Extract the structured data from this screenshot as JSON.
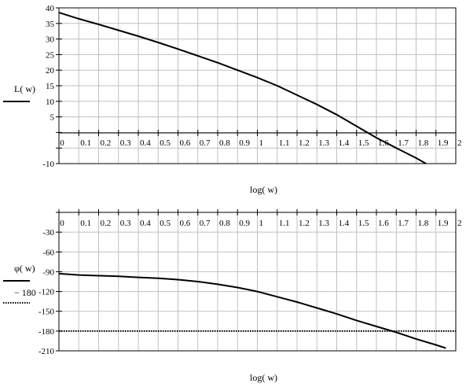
{
  "chart_data": [
    {
      "type": "line",
      "xlabel": "log( w)",
      "ylabel": "",
      "xlim": [
        0,
        2
      ],
      "ylim": [
        -10,
        40
      ],
      "x_ticks": [
        "0",
        "0.1",
        "0.2",
        "0.3",
        "0.4",
        "0.5",
        "0.6",
        "0.7",
        "0.8",
        "0.9",
        "1",
        "1.1",
        "1.2",
        "1.3",
        "1.4",
        "1.5",
        "1.6",
        "1.7",
        "1.8",
        "1.9",
        "2"
      ],
      "y_ticks": [
        {
          "value": 40,
          "label": "40"
        },
        {
          "value": 35,
          "label": "35"
        },
        {
          "value": 30,
          "label": "30"
        },
        {
          "value": 25,
          "label": "25"
        },
        {
          "value": 20,
          "label": "20"
        },
        {
          "value": 15,
          "label": "15"
        },
        {
          "value": 10,
          "label": "10"
        },
        {
          "value": 5,
          "label": "5"
        },
        {
          "value": -10,
          "label": "-10"
        }
      ],
      "grid": true,
      "legend_position": "left",
      "series": [
        {
          "name": "L( w)",
          "style": "solid",
          "color": "#000000",
          "x": [
            0,
            0.1,
            0.2,
            0.3,
            0.4,
            0.5,
            0.6,
            0.7,
            0.8,
            0.9,
            1.0,
            1.1,
            1.2,
            1.3,
            1.4,
            1.5,
            1.6,
            1.7,
            1.8,
            1.85
          ],
          "y": [
            38.5,
            36.5,
            34.7,
            32.8,
            30.9,
            28.9,
            26.8,
            24.6,
            22.4,
            20.0,
            17.6,
            15.0,
            12.0,
            9.0,
            5.7,
            2.0,
            -1.7,
            -5.0,
            -8.2,
            -10.0
          ]
        }
      ]
    },
    {
      "type": "line",
      "xlabel": "log( w)",
      "ylabel": "",
      "xlim": [
        0,
        2
      ],
      "ylim": [
        -210,
        0
      ],
      "x_ticks": [
        "0",
        "0.1",
        "0.2",
        "0.3",
        "0.4",
        "0.5",
        "0.6",
        "0.7",
        "0.8",
        "0.9",
        "1",
        "1.1",
        "1.2",
        "1.3",
        "1.4",
        "1.5",
        "1.6",
        "1.7",
        "1.8",
        "1.9",
        "2"
      ],
      "y_ticks": [
        {
          "value": -30,
          "label": "-30"
        },
        {
          "value": -60,
          "label": "-60"
        },
        {
          "value": -90,
          "label": "-90"
        },
        {
          "value": -120,
          "label": "-120"
        },
        {
          "value": -150,
          "label": "-150"
        },
        {
          "value": -180,
          "label": "-180"
        },
        {
          "value": -210,
          "label": "-210"
        }
      ],
      "grid": true,
      "legend_position": "left",
      "series": [
        {
          "name": "φ( w)",
          "style": "solid",
          "color": "#000000",
          "x": [
            0,
            0.1,
            0.2,
            0.3,
            0.4,
            0.5,
            0.6,
            0.7,
            0.8,
            0.9,
            1.0,
            1.1,
            1.2,
            1.3,
            1.4,
            1.5,
            1.6,
            1.7,
            1.8,
            1.9,
            1.95
          ],
          "y": [
            -93,
            -95,
            -96,
            -97,
            -98.5,
            -100,
            -102,
            -105,
            -109,
            -114,
            -120,
            -128,
            -136,
            -145,
            -154,
            -164,
            -173,
            -182,
            -192,
            -201,
            -206
          ]
        },
        {
          "name": "− 180",
          "style": "dotted",
          "color": "#000000",
          "x": [
            0,
            2
          ],
          "y": [
            -180,
            -180
          ]
        }
      ]
    }
  ]
}
